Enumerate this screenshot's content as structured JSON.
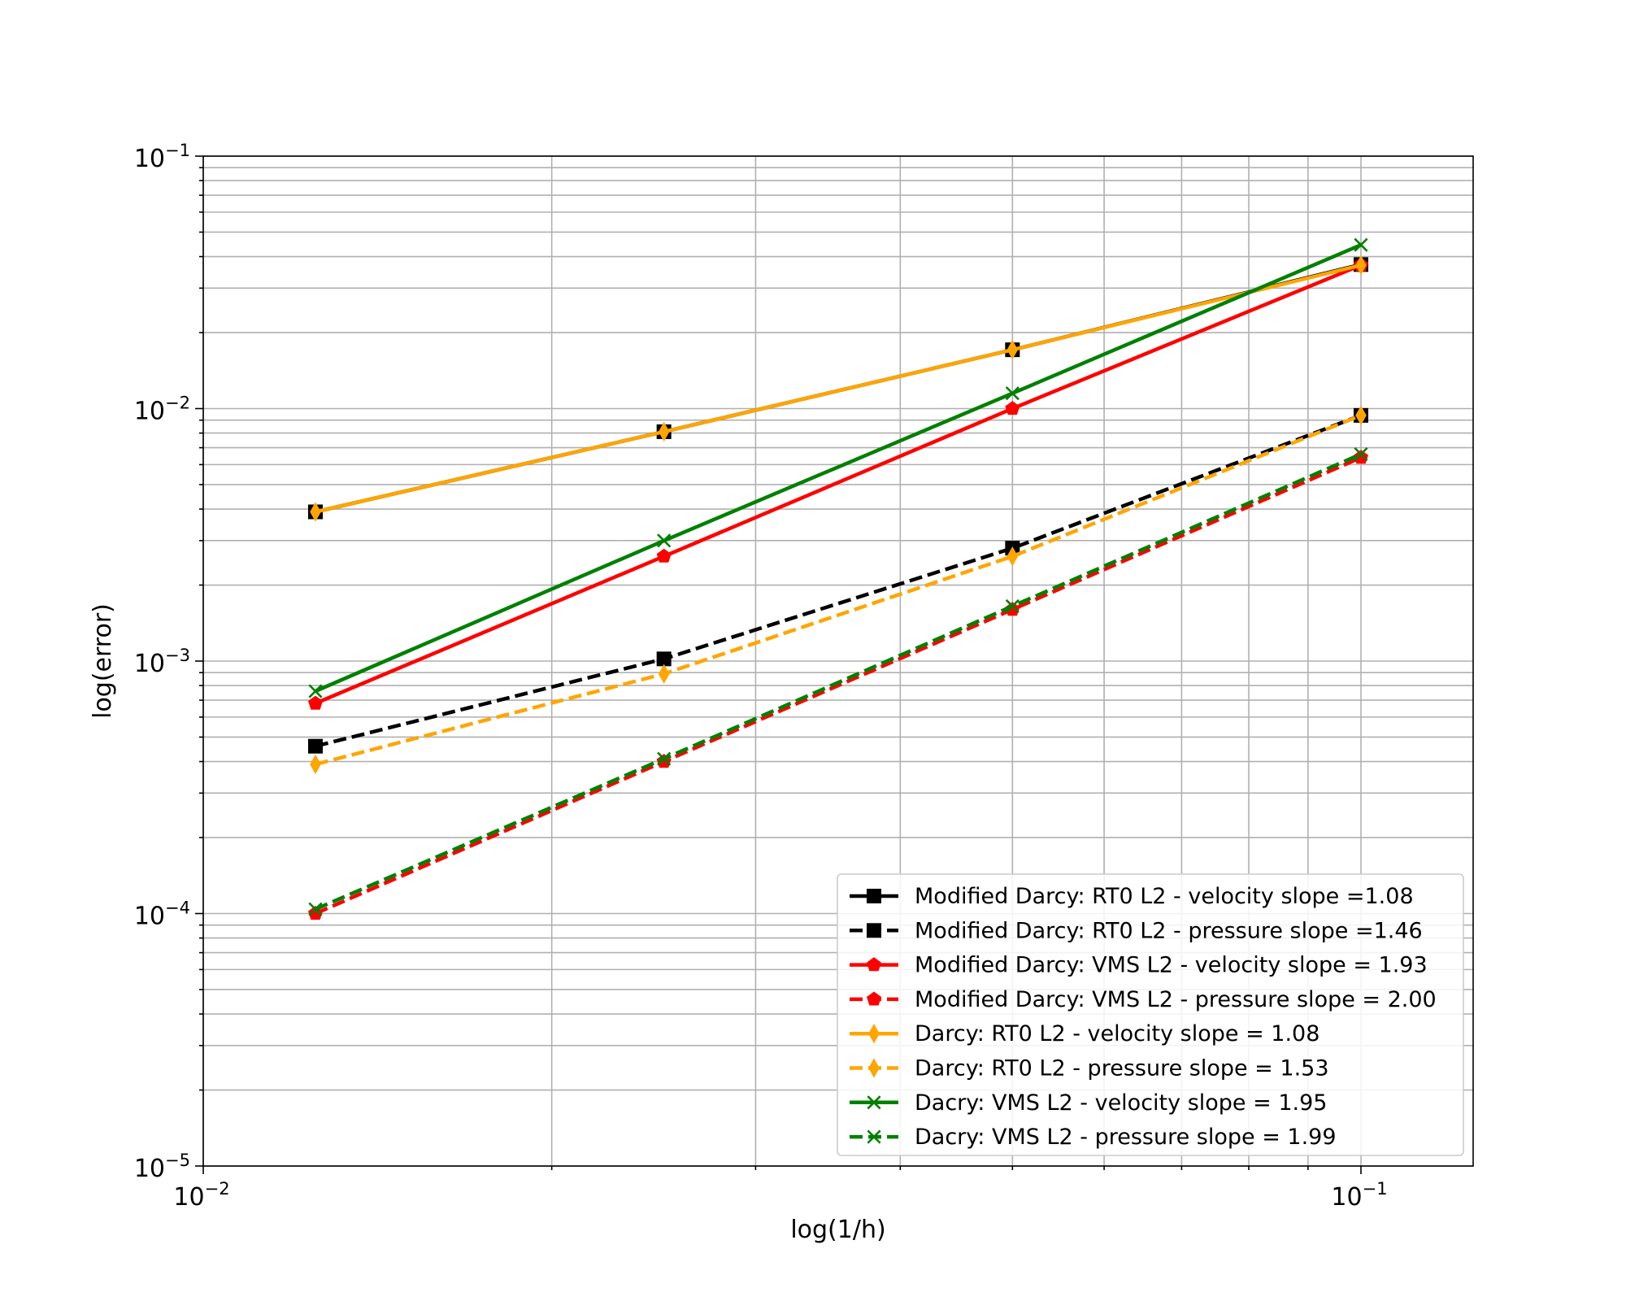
{
  "chart_data": {
    "type": "line",
    "xscale": "log",
    "yscale": "log",
    "xlabel": "log(1/h)",
    "ylabel": "log(error)",
    "xlim": [
      0.01,
      0.125
    ],
    "ylim": [
      1e-05,
      0.1
    ],
    "grid": true,
    "legend_position": "lower-right",
    "x": [
      0.0125,
      0.025,
      0.05,
      0.1
    ],
    "xticks": [
      {
        "value": 0.01,
        "base": "10",
        "exp": "−2"
      },
      {
        "value": 0.1,
        "base": "10",
        "exp": "−1"
      }
    ],
    "yticks": [
      {
        "value": 1e-05,
        "base": "10",
        "exp": "−5"
      },
      {
        "value": 0.0001,
        "base": "10",
        "exp": "−4"
      },
      {
        "value": 0.001,
        "base": "10",
        "exp": "−3"
      },
      {
        "value": 0.01,
        "base": "10",
        "exp": "−2"
      },
      {
        "value": 0.1,
        "base": "10",
        "exp": "−1"
      }
    ],
    "series": [
      {
        "name": "Modified Darcy: RT0 L2 - velocity slope =1.08",
        "color": "#000000",
        "dash": "solid",
        "marker": "square",
        "values": [
          0.0039,
          0.0081,
          0.0171,
          0.0372
        ]
      },
      {
        "name": "Modified Darcy: RT0 L2 - pressure slope =1.46",
        "color": "#000000",
        "dash": "dashed",
        "marker": "square",
        "values": [
          0.00046,
          0.00102,
          0.0028,
          0.0094
        ]
      },
      {
        "name": "Modified Darcy: VMS L2 - velocity slope = 1.93",
        "color": "#ff0000",
        "dash": "solid",
        "marker": "pentagon",
        "values": [
          0.00068,
          0.0026,
          0.01,
          0.037
        ]
      },
      {
        "name": "Modified Darcy: VMS L2 - pressure slope = 2.00",
        "color": "#ff0000",
        "dash": "dashed",
        "marker": "pentagon",
        "values": [
          0.0001,
          0.0004,
          0.0016,
          0.0064
        ]
      },
      {
        "name": "Darcy: RT0 L2 - velocity slope = 1.08",
        "color": "#ffa500",
        "dash": "solid",
        "marker": "diamond",
        "values": [
          0.0039,
          0.0081,
          0.0171,
          0.037
        ]
      },
      {
        "name": "Darcy: RT0 L2 - pressure slope = 1.53",
        "color": "#ffa500",
        "dash": "dashed",
        "marker": "diamond",
        "values": [
          0.00039,
          0.00089,
          0.0026,
          0.0094
        ]
      },
      {
        "name": "Dacry: VMS L2 - velocity slope = 1.95",
        "color": "#008000",
        "dash": "solid",
        "marker": "x",
        "values": [
          0.00076,
          0.003,
          0.0115,
          0.0445
        ]
      },
      {
        "name": "Dacry: VMS L2 - pressure slope = 1.99",
        "color": "#008000",
        "dash": "dashed",
        "marker": "x",
        "values": [
          0.000104,
          0.00041,
          0.00165,
          0.0066
        ]
      }
    ]
  }
}
